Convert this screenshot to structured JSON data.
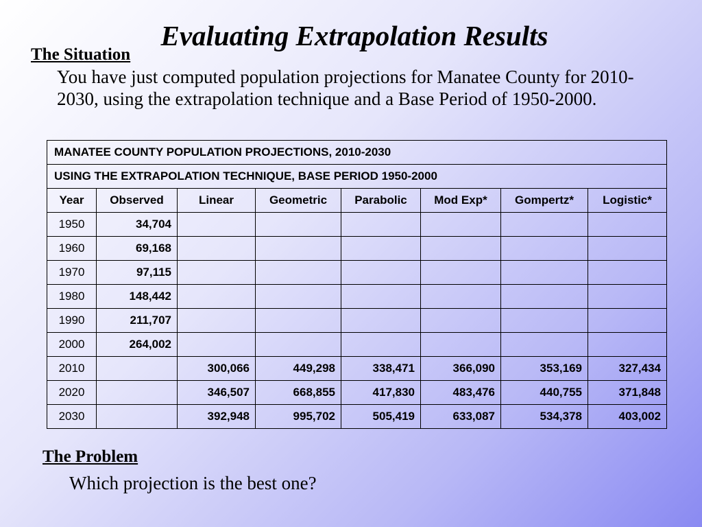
{
  "title": "Evaluating Extrapolation Results",
  "situation": {
    "heading": "The Situation",
    "text": "You have just computed population projections for Manatee County for 2010-2030, using the extrapolation technique and a Base Period of 1950-2000."
  },
  "table": {
    "banner1": "MANATEE COUNTY POPULATION PROJECTIONS, 2010-2030",
    "banner2": "USING THE EXTRAPOLATION TECHNIQUE, BASE PERIOD 1950-2000",
    "columns": [
      "Year",
      "Observed",
      "Linear",
      "Geometric",
      "Parabolic",
      "Mod Exp*",
      "Gompertz*",
      "Logistic*"
    ],
    "rows": [
      [
        "1950",
        "34,704",
        "",
        "",
        "",
        "",
        "",
        ""
      ],
      [
        "1960",
        "69,168",
        "",
        "",
        "",
        "",
        "",
        ""
      ],
      [
        "1970",
        "97,115",
        "",
        "",
        "",
        "",
        "",
        ""
      ],
      [
        "1980",
        "148,442",
        "",
        "",
        "",
        "",
        "",
        ""
      ],
      [
        "1990",
        "211,707",
        "",
        "",
        "",
        "",
        "",
        ""
      ],
      [
        "2000",
        "264,002",
        "",
        "",
        "",
        "",
        "",
        ""
      ],
      [
        "2010",
        "",
        "300,066",
        "449,298",
        "338,471",
        "366,090",
        "353,169",
        "327,434"
      ],
      [
        "2020",
        "",
        "346,507",
        "668,855",
        "417,830",
        "483,476",
        "440,755",
        "371,848"
      ],
      [
        "2030",
        "",
        "392,948",
        "995,702",
        "505,419",
        "633,087",
        "534,378",
        "403,002"
      ]
    ]
  },
  "problem": {
    "heading": "The Problem",
    "text": "Which projection is the best one?"
  }
}
